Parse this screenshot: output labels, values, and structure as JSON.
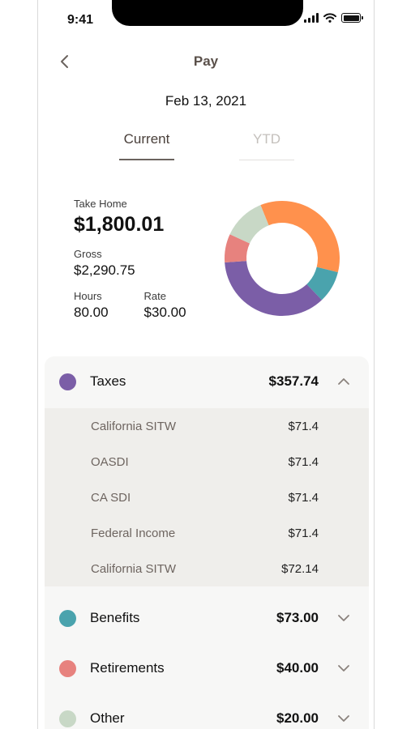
{
  "status_bar": {
    "time": "9:41"
  },
  "header": {
    "title": "Pay"
  },
  "pay_date": "Feb 13, 2021",
  "tabs": [
    {
      "label": "Current",
      "selected": true
    },
    {
      "label": "YTD",
      "selected": false
    }
  ],
  "summary": {
    "take_home_label": "Take Home",
    "take_home_value": "$1,800.01",
    "gross_label": "Gross",
    "gross_value": "$2,290.75",
    "hours_label": "Hours",
    "hours_value": "80.00",
    "rate_label": "Rate",
    "rate_value": "$30.00"
  },
  "chart_data": {
    "type": "pie",
    "style": "donut",
    "slices": [
      {
        "value": 35,
        "color": "#ff914d"
      },
      {
        "value": 9,
        "color": "#4aa3ad"
      },
      {
        "value": 36,
        "color": "#7b5ea7"
      },
      {
        "value": 8,
        "color": "#e7827e"
      },
      {
        "value": 12,
        "color": "#c8d8c6"
      }
    ]
  },
  "categories": [
    {
      "label": "Taxes",
      "amount": "$357.74",
      "color": "#7b5ea7",
      "expanded": true,
      "icon": "chevron-up-icon",
      "items": [
        {
          "label": "California SITW",
          "amount": "$71.4"
        },
        {
          "label": "OASDI",
          "amount": "$71.4"
        },
        {
          "label": "CA SDI",
          "amount": "$71.4"
        },
        {
          "label": "Federal Income",
          "amount": "$71.4"
        },
        {
          "label": "California SITW",
          "amount": "$72.14"
        }
      ]
    },
    {
      "label": "Benefits",
      "amount": "$73.00",
      "color": "#4aa3ad",
      "expanded": false,
      "icon": "chevron-down-icon"
    },
    {
      "label": "Retirements",
      "amount": "$40.00",
      "color": "#e7827e",
      "expanded": false,
      "icon": "chevron-down-icon"
    },
    {
      "label": "Other",
      "amount": "$20.00",
      "color": "#c8d8c6",
      "expanded": false,
      "icon": "chevron-down-icon"
    }
  ]
}
